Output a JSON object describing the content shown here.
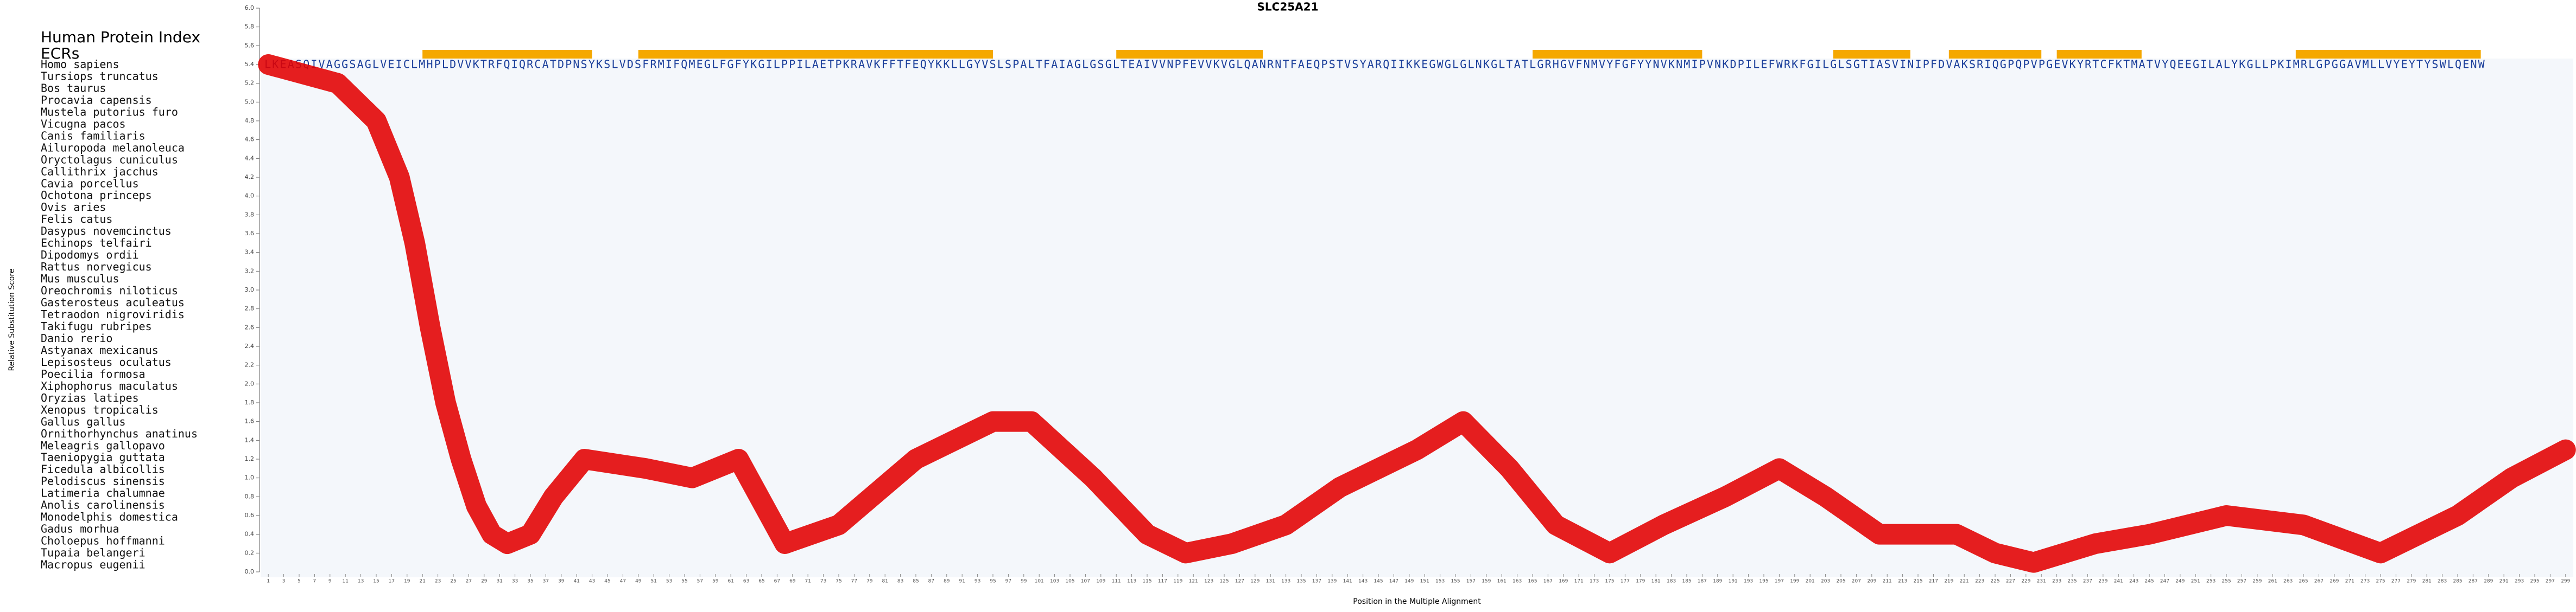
{
  "chart_data": {
    "type": "line",
    "title": "SLC25A21",
    "header_label": "Human Protein Index",
    "ecr_label": "ECRs",
    "ylabel": "Relative Substitution Score",
    "xlabel": "Position in the Multiple Alignment",
    "human_sequence": "LKEASQIVAGGSAGLVEICLMHPLDVVKTRFQIQRCATDPNSYKSLVDSFRMIFQMEGLFGFYKGILPPILAETPKRAVKFFTFEQYKKLLGYVSLSPALTFAIAGLGSGLTEAIVVNPFEVVKVGLQANRNTFAEQPSTVSYARQIIKKEGWGLGLNKGLTATLGRHGVFNMVYFGFYYNVKNMIPVNKDPILEFWRKFGILGLSGTIASVINIPFDVAKSRIQGPQPVPGEVKYRTCFKTMATVYQEEGILALYKGLLPKIMRLGPGGAVMLLVYEYTYSWLQENW",
    "species": [
      "Homo sapiens",
      "Tursiops truncatus",
      "Bos taurus",
      "Procavia capensis",
      "Mustela putorius furo",
      "Vicugna pacos",
      "Canis familiaris",
      "Ailuropoda melanoleuca",
      "Oryctolagus cuniculus",
      "Callithrix jacchus",
      "Cavia porcellus",
      "Ochotona princeps",
      "Ovis aries",
      "Felis catus",
      "Dasypus novemcinctus",
      "Echinops telfairi",
      "Dipodomys ordii",
      "Rattus norvegicus",
      "Mus musculus",
      "Oreochromis niloticus",
      "Gasterosteus aculeatus",
      "Tetraodon nigroviridis",
      "Takifugu rubripes",
      "Danio rerio",
      "Astyanax mexicanus",
      "Lepisosteus oculatus",
      "Poecilia formosa",
      "Xiphophorus maculatus",
      "Oryzias latipes",
      "Xenopus tropicalis",
      "Gallus gallus",
      "Ornithorhynchus anatinus",
      "Meleagris gallopavo",
      "Taeniopygia guttata",
      "Ficedula albicollis",
      "Pelodiscus sinensis",
      "Latimeria chalumnae",
      "Anolis carolinensis",
      "Monodelphis domestica",
      "Gadus morhua",
      "Choloepus hoffmanni",
      "Tupaia belangeri",
      "Macropus eugenii"
    ],
    "ecrs": [
      [
        21,
        43
      ],
      [
        49,
        95
      ],
      [
        111,
        130
      ],
      [
        165,
        187
      ],
      [
        204,
        214
      ],
      [
        219,
        231
      ],
      [
        233,
        244
      ],
      [
        264,
        288
      ]
    ],
    "ecr_color": "#f5a800",
    "series": [
      {
        "color": "#e30000",
        "x": [
          1,
          10,
          15,
          18,
          20,
          22,
          24,
          26,
          28,
          30,
          32,
          35,
          38,
          42,
          50,
          56,
          62,
          68,
          75,
          85,
          95,
          100,
          108,
          115,
          120,
          126,
          133,
          140,
          150,
          156,
          162,
          168,
          175,
          182,
          190,
          197,
          203,
          210,
          220,
          225,
          230,
          238,
          245,
          255,
          265,
          275,
          285,
          292,
          299
        ],
        "values": [
          5.4,
          5.2,
          4.8,
          4.2,
          3.5,
          2.6,
          1.8,
          1.2,
          0.7,
          0.4,
          0.3,
          0.4,
          0.8,
          1.2,
          1.1,
          1.0,
          1.2,
          0.3,
          0.5,
          1.2,
          1.6,
          1.6,
          1.0,
          0.4,
          0.2,
          0.3,
          0.5,
          0.9,
          1.3,
          1.6,
          1.1,
          0.5,
          0.2,
          0.5,
          0.8,
          1.1,
          0.8,
          0.4,
          0.4,
          0.2,
          0.1,
          0.3,
          0.4,
          0.6,
          0.5,
          0.2,
          0.6,
          1.0,
          1.3
        ]
      }
    ],
    "xlim": [
      0,
      300
    ],
    "ylim": [
      0,
      6
    ],
    "yticks": [
      {
        "value": 0,
        "label": "0.0"
      },
      0.2,
      0.4,
      0.6,
      0.8,
      {
        "value": 1,
        "label": "1.0"
      },
      1.2,
      1.4,
      1.6,
      1.8,
      {
        "value": 2,
        "label": "2.0"
      },
      2.2,
      2.4,
      2.6,
      2.8,
      {
        "value": 3,
        "label": "3.0"
      },
      3.2,
      3.4,
      3.6,
      3.8,
      {
        "value": 4,
        "label": "4.0"
      },
      4.2,
      4.4,
      4.6,
      4.8,
      {
        "value": 5,
        "label": "5.0"
      },
      5.2,
      5.4,
      5.6,
      5.8,
      {
        "value": 6,
        "label": "6.0"
      }
    ],
    "xticks": [
      1,
      3,
      5,
      7,
      9,
      11,
      13,
      15,
      17,
      19,
      21,
      23,
      25,
      27,
      29,
      31,
      33,
      35,
      37,
      39,
      41,
      43,
      45,
      47,
      49,
      51,
      53,
      55,
      57,
      59,
      61,
      63,
      65,
      67,
      69,
      71,
      73,
      75,
      77,
      79,
      81,
      83,
      85,
      87,
      89,
      91,
      93,
      95,
      97,
      99,
      101,
      103,
      105,
      107,
      109,
      111,
      113,
      115,
      117,
      119,
      121,
      123,
      125,
      127,
      129,
      131,
      133,
      135,
      137,
      139,
      141,
      143,
      145,
      147,
      149,
      151,
      153,
      155,
      157,
      159,
      161,
      163,
      165,
      167,
      169,
      171,
      173,
      175,
      177,
      179,
      181,
      183,
      185,
      187,
      189,
      191,
      193,
      195,
      197,
      199,
      201,
      203,
      205,
      207,
      209,
      211,
      213,
      215,
      217,
      219,
      221,
      223,
      225,
      227,
      229,
      231,
      233,
      235,
      237,
      239,
      241,
      243,
      245,
      247,
      249,
      251,
      253,
      255,
      257,
      259,
      261,
      263,
      265,
      267,
      269,
      271,
      273,
      275,
      277,
      279,
      281,
      283,
      285,
      287,
      289,
      291,
      293,
      295,
      297,
      299
    ]
  }
}
